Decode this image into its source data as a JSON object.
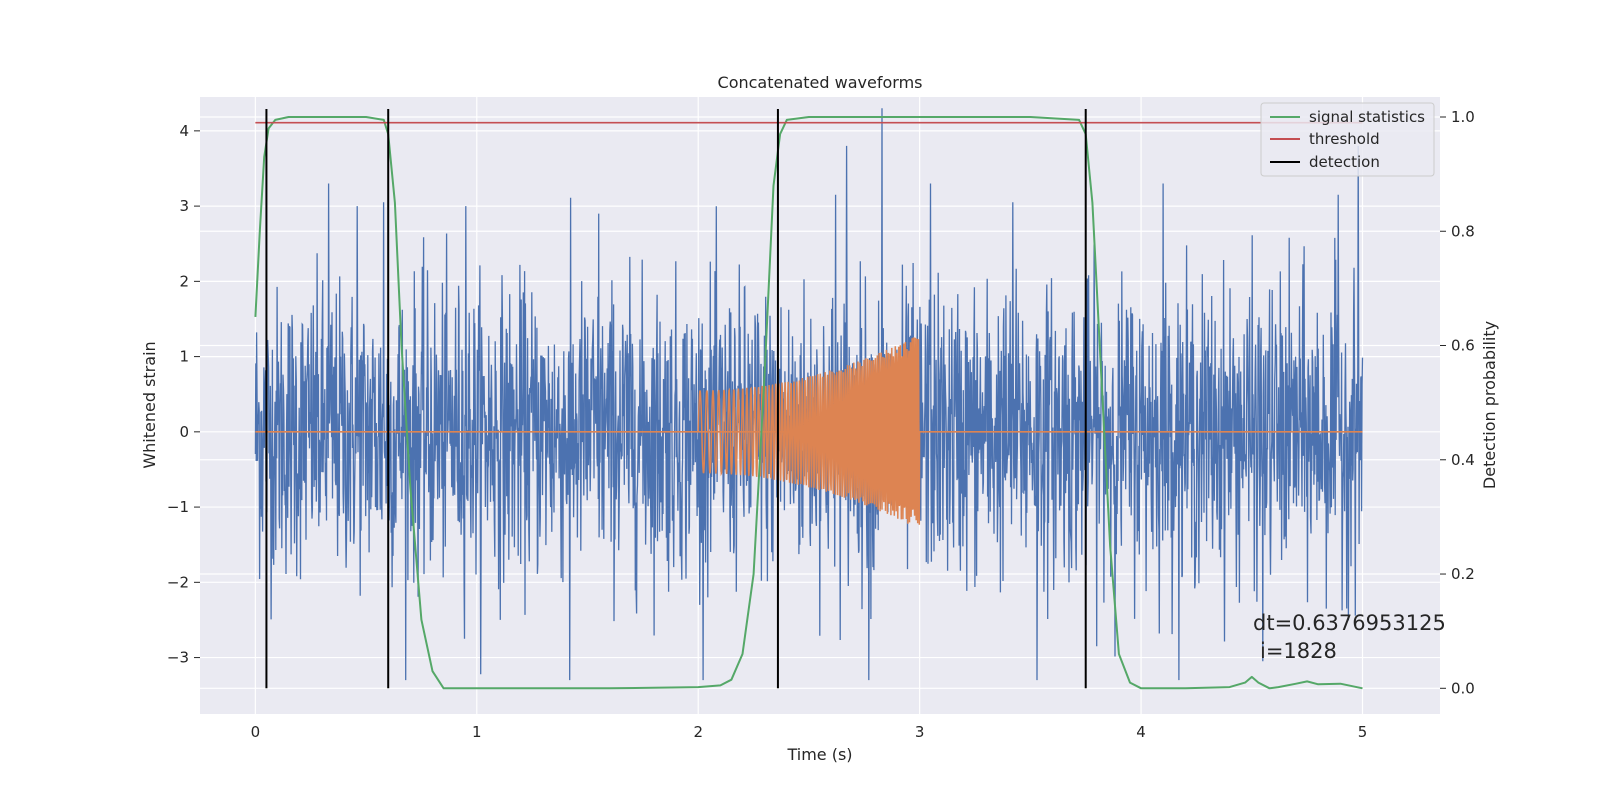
{
  "chart_data": {
    "type": "line",
    "title": "Concatenated waveforms",
    "xlabel": "Time (s)",
    "ylabel": "Whitened strain",
    "y2label": "Detection probability",
    "xlim": [
      -0.25,
      5.35
    ],
    "ylim": [
      -3.75,
      4.45
    ],
    "y2lim": [
      -0.045,
      1.035
    ],
    "x_ticks": [
      0,
      1,
      2,
      3,
      4,
      5
    ],
    "x_tick_labels": [
      "0",
      "1",
      "2",
      "3",
      "4",
      "5"
    ],
    "y_ticks": [
      -3,
      -2,
      -1,
      0,
      1,
      2,
      3,
      4
    ],
    "y_tick_labels": [
      "−3",
      "−2",
      "−1",
      "0",
      "1",
      "2",
      "3",
      "4"
    ],
    "y2_ticks": [
      0.0,
      0.2,
      0.4,
      0.6,
      0.8,
      1.0
    ],
    "y2_tick_labels": [
      "0.0",
      "0.2",
      "0.4",
      "0.6",
      "0.8",
      "1.0"
    ],
    "grid": true,
    "legend_position": "top-right",
    "strain": {
      "color": "#4c72b0",
      "x_range": [
        0,
        5
      ],
      "typical_envelope": 1.3,
      "extreme_peaks": [
        {
          "x": 0.33,
          "y": 3.3
        },
        {
          "x": 0.46,
          "y": 3.0
        },
        {
          "x": 0.58,
          "y": 3.05
        },
        {
          "x": 0.95,
          "y": 3.0
        },
        {
          "x": 1.42,
          "y": -3.3
        },
        {
          "x": 1.55,
          "y": 2.9
        },
        {
          "x": 2.62,
          "y": 3.15
        },
        {
          "x": 2.67,
          "y": 3.8
        },
        {
          "x": 2.77,
          "y": -3.3
        },
        {
          "x": 2.83,
          "y": 4.3
        },
        {
          "x": 3.05,
          "y": 3.3
        },
        {
          "x": 3.42,
          "y": 3.05
        },
        {
          "x": 3.53,
          "y": -3.3
        },
        {
          "x": 4.1,
          "y": 3.3
        },
        {
          "x": 4.55,
          "y": -3.05
        },
        {
          "x": 4.89,
          "y": 3.15
        },
        {
          "x": 4.98,
          "y": 3.8
        }
      ]
    },
    "chirp": {
      "color": "#dd8452",
      "t_start": 2.0,
      "t_end": 3.0,
      "amplitude_start": 0.55,
      "amplitude_end": 1.3,
      "baseline": 0.0
    },
    "series": [
      {
        "name": "signal statistics",
        "color": "#55a868",
        "axis": "right",
        "x": [
          0.0,
          0.02,
          0.04,
          0.06,
          0.09,
          0.15,
          0.3,
          0.5,
          0.58,
          0.6,
          0.63,
          0.66,
          0.7,
          0.75,
          0.8,
          0.85,
          0.9,
          1.2,
          1.6,
          2.0,
          2.1,
          2.15,
          2.2,
          2.25,
          2.3,
          2.34,
          2.37,
          2.4,
          2.5,
          3.0,
          3.5,
          3.72,
          3.75,
          3.78,
          3.82,
          3.86,
          3.9,
          3.95,
          4.0,
          4.2,
          4.4,
          4.47,
          4.5,
          4.53,
          4.58,
          4.62,
          4.7,
          4.75,
          4.8,
          4.9,
          5.0
        ],
        "y": [
          0.65,
          0.8,
          0.93,
          0.98,
          0.995,
          1.0,
          1.0,
          1.0,
          0.995,
          0.97,
          0.85,
          0.6,
          0.35,
          0.12,
          0.03,
          0.0,
          0.0,
          0.0,
          0.0,
          0.002,
          0.005,
          0.015,
          0.06,
          0.2,
          0.55,
          0.88,
          0.97,
          0.995,
          1.0,
          1.0,
          1.0,
          0.995,
          0.97,
          0.85,
          0.55,
          0.25,
          0.06,
          0.01,
          0.0,
          0.0,
          0.002,
          0.01,
          0.02,
          0.01,
          0.0,
          0.002,
          0.008,
          0.012,
          0.007,
          0.008,
          0.0
        ]
      },
      {
        "name": "threshold",
        "color": "#c44e52",
        "axis": "right",
        "x": [
          0.0,
          5.0
        ],
        "y": [
          0.99,
          0.99
        ]
      },
      {
        "name": "detection",
        "color": "#000000",
        "axis": "right",
        "type": "vlines",
        "x": [
          0.05,
          0.6,
          2.36,
          3.75
        ],
        "ymin": 0.0,
        "ymax": 1.0
      }
    ],
    "annotations": [
      "dt=0.6376953125",
      "i=1828"
    ]
  }
}
